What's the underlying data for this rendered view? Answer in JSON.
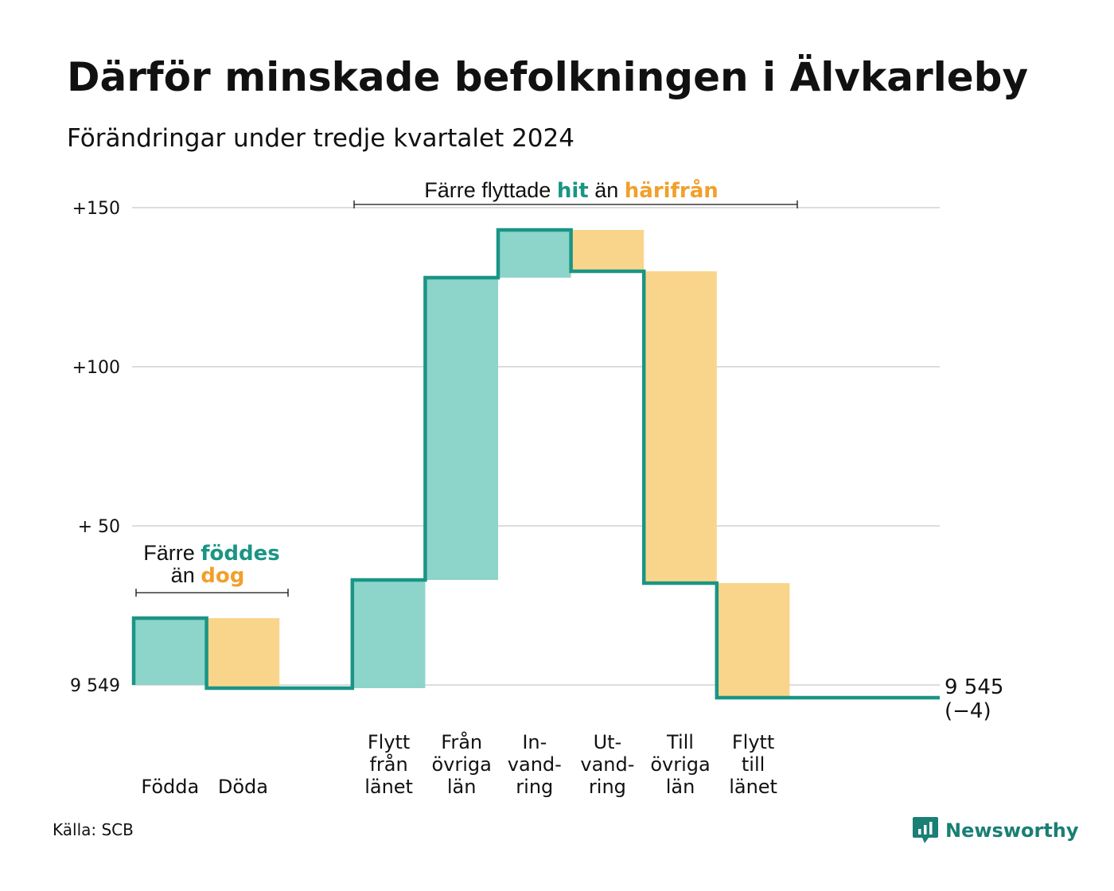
{
  "title": "Därför minskade befolkningen i Älvkarleby",
  "subtitle": "Förändringar under tredje kvartalet 2024",
  "source": "Källa: SCB",
  "brand": {
    "name": "Newsworthy",
    "icon": "chart-bubble-icon"
  },
  "colors": {
    "line": "#1a9585",
    "increase": "#8dd4cb",
    "decrease": "#f9d58b",
    "increase_text": "#1a9585",
    "decrease_text": "#f0a02b",
    "grid": "#dddddd"
  },
  "annotations": {
    "births": {
      "text1": "Färre",
      "hl1": "föddes",
      "text2": "än",
      "hl2": "dog"
    },
    "migration": {
      "text1": "Färre flyttade",
      "hl1": "hit",
      "text2": "än",
      "hl2": "härifrån"
    }
  },
  "chart_data": {
    "type": "waterfall",
    "title": "Därför minskade befolkningen i Älvkarleby",
    "subtitle": "Förändringar under tredje kvartalet 2024",
    "start_value": 9549,
    "end_value": 9545,
    "end_label": "9 545",
    "end_change_label": "(−4)",
    "y_ticks": [
      {
        "value": 0,
        "label": "9 549"
      },
      {
        "value": 50,
        "label": "+ 50"
      },
      {
        "value": 100,
        "label": "+100"
      },
      {
        "value": 150,
        "label": "+150"
      }
    ],
    "ylim": [
      0,
      150
    ],
    "grid": true,
    "categories": [
      {
        "label": [
          "Födda"
        ],
        "change": 21
      },
      {
        "label": [
          "Döda"
        ],
        "change": -22
      },
      {
        "label": [],
        "change": 0
      },
      {
        "label": [
          "Flytt",
          "från",
          "länet"
        ],
        "change": 34
      },
      {
        "label": [
          "Från",
          "övriga",
          "län"
        ],
        "change": 95
      },
      {
        "label": [
          "In-",
          "vand-",
          "ring"
        ],
        "change": 15
      },
      {
        "label": [
          "Ut-",
          "vand-",
          "ring"
        ],
        "change": -13
      },
      {
        "label": [
          "Till",
          "övriga",
          "län"
        ],
        "change": -98
      },
      {
        "label": [
          "Flytt",
          "till",
          "länet"
        ],
        "change": -36
      },
      {
        "label": [],
        "change": 0
      }
    ]
  }
}
